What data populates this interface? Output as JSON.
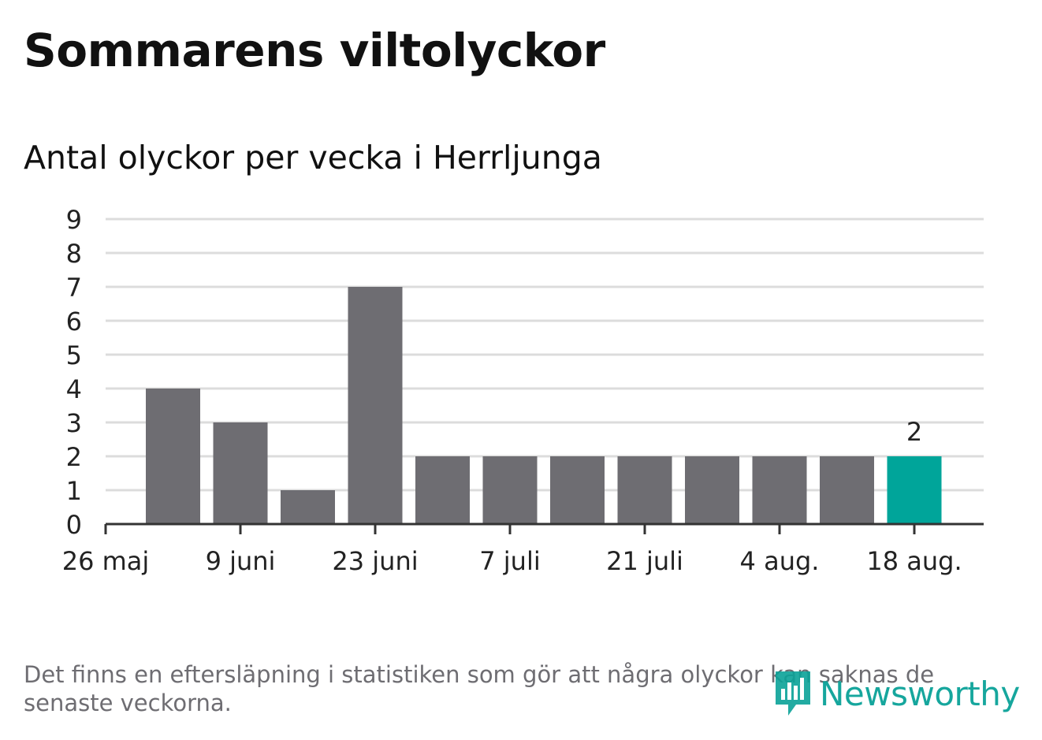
{
  "title": "Sommarens viltolyckor",
  "subtitle": "Antal olyckor per vecka i Herrljunga",
  "footnote": "Det finns en eftersläpning i statistiken som gör att några olyckor kan saknas de senaste veckorna.",
  "brand": {
    "name": "Newsworthy",
    "icon": "newsworthy-logo-icon"
  },
  "colors": {
    "bar": "#6e6d72",
    "highlight": "#00a59a",
    "grid": "#dcdcdc",
    "axis": "#333333",
    "text": "#222222"
  },
  "chart_data": {
    "type": "bar",
    "x": [
      "2 juni",
      "9 juni",
      "16 juni",
      "23 juni",
      "30 juni",
      "7 juli",
      "14 juli",
      "21 juli",
      "28 juli",
      "4 aug.",
      "11 aug.",
      "18 aug."
    ],
    "values": [
      4,
      3,
      1,
      7,
      2,
      2,
      2,
      2,
      2,
      2,
      2,
      2
    ],
    "highlight_index": 11,
    "highlight_label": "2",
    "xticks": [
      "26 maj",
      "9 juni",
      "23 juni",
      "7 juli",
      "21 juli",
      "4 aug.",
      "18 aug."
    ],
    "yticks": [
      0,
      1,
      2,
      3,
      4,
      5,
      6,
      7,
      8,
      9
    ],
    "ylim": [
      0,
      9
    ],
    "grid": true,
    "xlabel": "",
    "ylabel": ""
  }
}
